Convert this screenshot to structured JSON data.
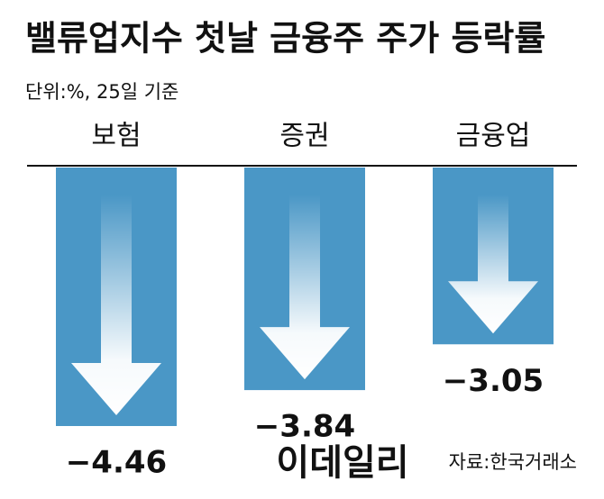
{
  "chart_data": {
    "type": "bar",
    "title": "밸류업지수 첫날 금융주 주가 등락률",
    "subtitle": "단위:%, 25일 기준",
    "categories": [
      "보험",
      "증권",
      "금융업"
    ],
    "values": [
      -4.46,
      -3.84,
      -3.05
    ],
    "value_labels": [
      "−4.46",
      "−3.84",
      "−3.05"
    ],
    "color": "#4a97c6",
    "ylim": [
      -4.6,
      0
    ],
    "source": "자료:한국거래소",
    "watermark": "이데일리"
  }
}
